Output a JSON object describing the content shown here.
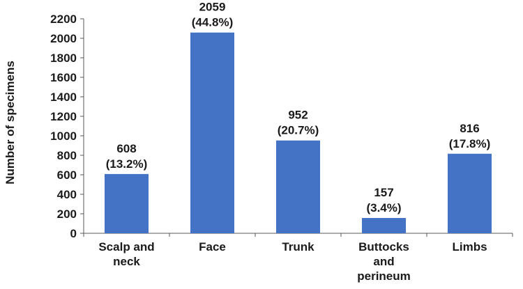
{
  "chart_data": {
    "type": "bar",
    "categories": [
      [
        "Scalp and",
        "neck"
      ],
      [
        "Face"
      ],
      [
        "Trunk"
      ],
      [
        "Buttocks",
        "and",
        "perineum"
      ],
      [
        "Limbs"
      ]
    ],
    "values": [
      608,
      2059,
      952,
      157,
      816
    ],
    "percent_labels": [
      "(13.2%)",
      "(44.8%)",
      "(20.7%)",
      "(3.4%)",
      "(17.8%)"
    ],
    "value_labels": [
      "608",
      "2059",
      "952",
      "157",
      "816"
    ],
    "title": "",
    "xlabel": "",
    "ylabel": "Number of specimens",
    "ylim": [
      0,
      2200
    ],
    "yticks": [
      0,
      200,
      400,
      600,
      800,
      1000,
      1200,
      1400,
      1600,
      1800,
      2000,
      2200
    ],
    "bar_color": "#4472c4",
    "grid": false,
    "legend": "none"
  }
}
